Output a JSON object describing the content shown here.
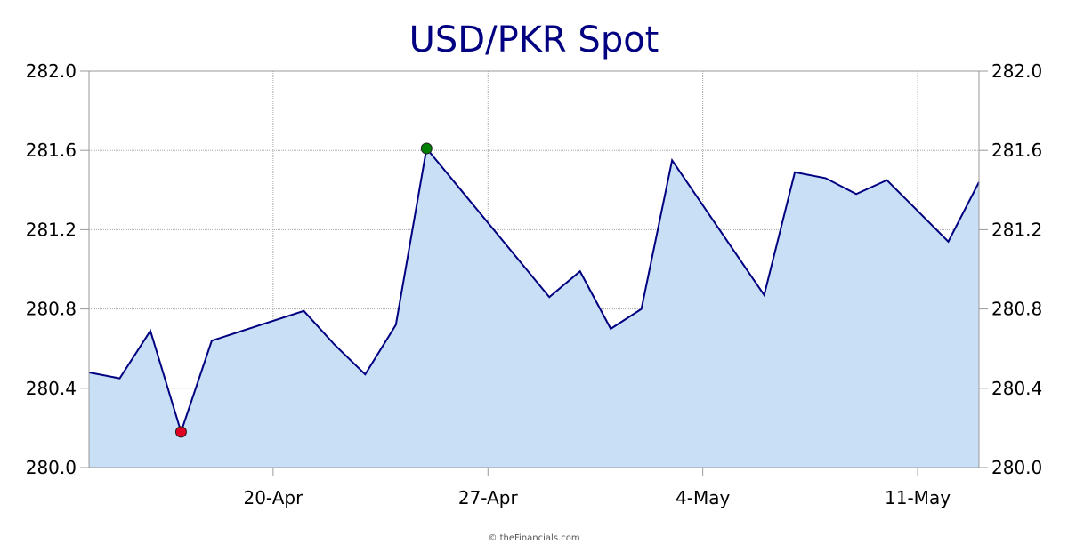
{
  "chart_data": {
    "type": "area",
    "title": "USD/PKR Spot",
    "xlabel": "",
    "ylabel": "",
    "ylim": [
      280.0,
      282.0
    ],
    "y_ticks": [
      "280.0",
      "280.4",
      "280.8",
      "281.2",
      "281.6",
      "282.0"
    ],
    "x_tick_labels": [
      {
        "label": "20-Apr",
        "x": "2024-04-20"
      },
      {
        "label": "27-Apr",
        "x": "2024-04-27"
      },
      {
        "label": "4-May",
        "x": "2024-05-04"
      },
      {
        "label": "11-May",
        "x": "2024-05-11"
      }
    ],
    "xlim": [
      "2024-04-14",
      "2024-05-13"
    ],
    "grid": true,
    "series": [
      {
        "points": [
          {
            "x": "2024-04-14",
            "y": 280.48
          },
          {
            "x": "2024-04-15",
            "y": 280.45
          },
          {
            "x": "2024-04-16",
            "y": 280.69
          },
          {
            "x": "2024-04-17",
            "y": 280.18
          },
          {
            "x": "2024-04-18",
            "y": 280.64
          },
          {
            "x": "2024-04-21",
            "y": 280.79
          },
          {
            "x": "2024-04-22",
            "y": 280.62
          },
          {
            "x": "2024-04-23",
            "y": 280.47
          },
          {
            "x": "2024-04-24",
            "y": 280.72
          },
          {
            "x": "2024-04-25",
            "y": 281.61
          },
          {
            "x": "2024-04-29",
            "y": 280.86
          },
          {
            "x": "2024-04-30",
            "y": 280.99
          },
          {
            "x": "2024-05-01",
            "y": 280.7
          },
          {
            "x": "2024-05-02",
            "y": 280.8
          },
          {
            "x": "2024-05-03",
            "y": 281.55
          },
          {
            "x": "2024-05-06",
            "y": 280.87
          },
          {
            "x": "2024-05-07",
            "y": 281.49
          },
          {
            "x": "2024-05-08",
            "y": 281.46
          },
          {
            "x": "2024-05-09",
            "y": 281.38
          },
          {
            "x": "2024-05-10",
            "y": 281.45
          },
          {
            "x": "2024-05-12",
            "y": 281.14
          },
          {
            "x": "2024-05-13",
            "y": 281.44
          }
        ]
      }
    ],
    "markers": [
      {
        "type": "max",
        "x": "2024-04-25",
        "y": 281.61,
        "color": "#008000"
      },
      {
        "type": "min",
        "x": "2024-04-17",
        "y": 280.18,
        "color": "#e00020"
      }
    ],
    "colors": {
      "line": "#000080",
      "fill": "#c9dff5",
      "title": "#000080",
      "grid": "#aaaaaa",
      "axis": "#999999"
    }
  },
  "footer": {
    "credit": "© theFinancials.com"
  }
}
